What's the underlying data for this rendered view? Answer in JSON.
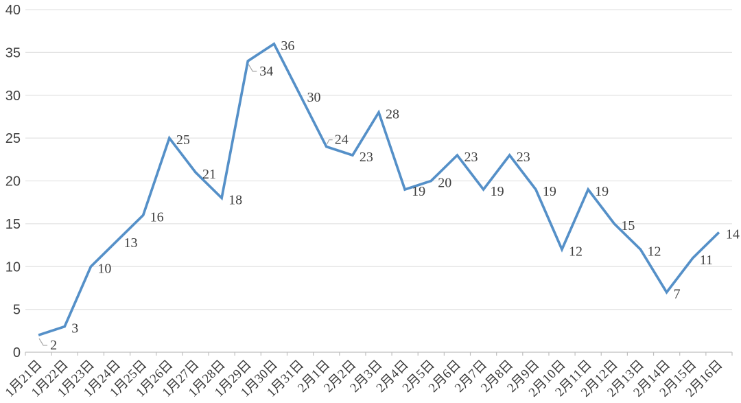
{
  "chart_data": {
    "type": "line",
    "title": "",
    "xlabel": "",
    "ylabel": "",
    "categories": [
      "1月21日",
      "1月22日",
      "1月23日",
      "1月24日",
      "1月25日",
      "1月26日",
      "1月27日",
      "1月28日",
      "1月29日",
      "1月30日",
      "1月31日",
      "2月1日",
      "2月2日",
      "2月3日",
      "2月4日",
      "2月5日",
      "2月6日",
      "2月7日",
      "2月8日",
      "2月9日",
      "2月10日",
      "2月11日",
      "2月12日",
      "2月13日",
      "2月14日",
      "2月15日",
      "2月16日"
    ],
    "values": [
      2,
      3,
      10,
      13,
      16,
      25,
      21,
      18,
      34,
      36,
      30,
      24,
      23,
      28,
      19,
      20,
      23,
      19,
      23,
      19,
      12,
      19,
      15,
      12,
      7,
      11,
      14
    ],
    "yticks": [
      0,
      5,
      10,
      15,
      20,
      25,
      30,
      35,
      40
    ],
    "ylim": [
      0,
      40
    ],
    "grid": true,
    "legend": "none",
    "data_labels": true,
    "label_callouts": {
      "below": [
        0,
        8
      ],
      "above": [
        11
      ]
    },
    "colors": {
      "line": "#5590c8",
      "gridline": "#e3e3e3",
      "axis": "#bfbfbf",
      "label": "#3f3f3f",
      "leader": "#a6a6a6",
      "background": "#ffffff"
    }
  }
}
